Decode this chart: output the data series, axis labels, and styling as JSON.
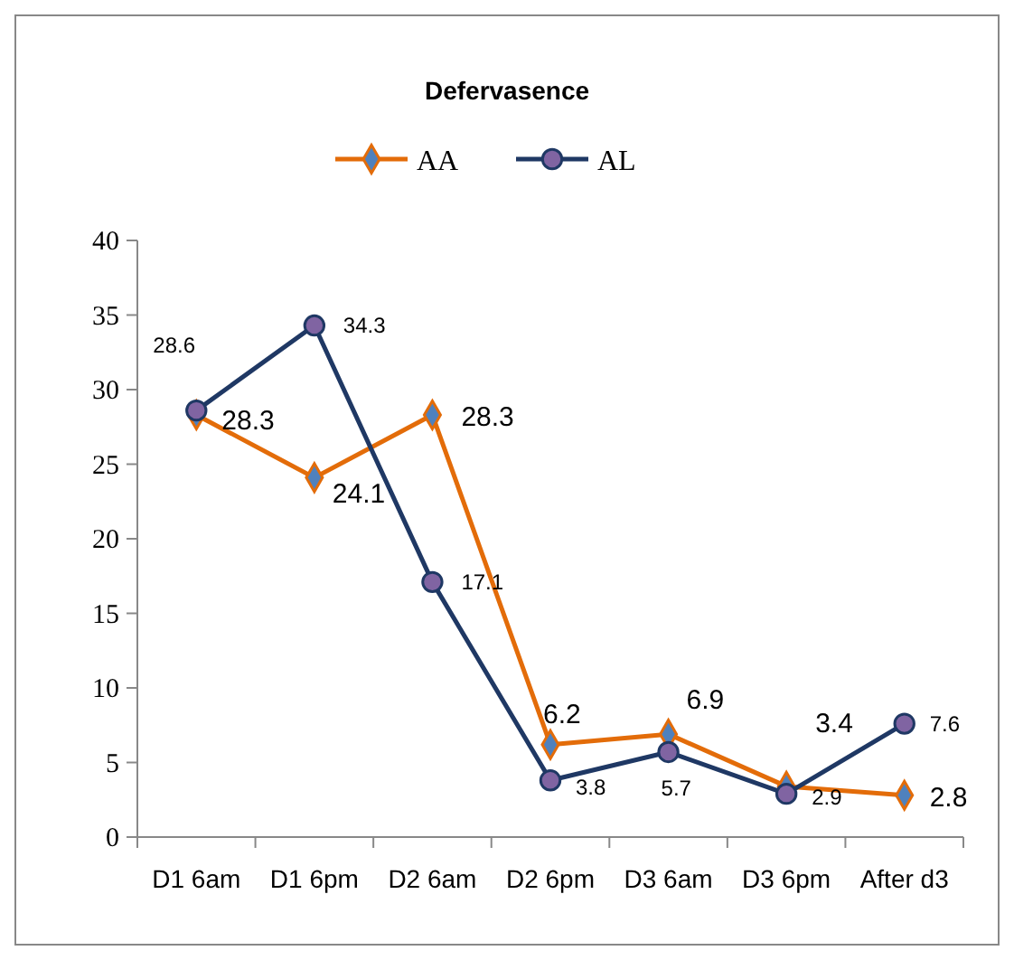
{
  "chart_data": {
    "type": "line",
    "title": "Defervasence",
    "categories": [
      "D1 6am",
      "D1 6pm",
      "D2 6am",
      "D2 6pm",
      "D3 6am",
      "D3 6pm",
      "After d3"
    ],
    "series": [
      {
        "name": "AA",
        "color": "#e36c09",
        "marker": "diamond",
        "values": [
          28.3,
          24.1,
          28.3,
          6.2,
          6.9,
          3.4,
          2.8
        ]
      },
      {
        "name": "AL",
        "color": "#1f3864",
        "marker": "circle",
        "values": [
          28.6,
          34.3,
          17.1,
          3.8,
          5.7,
          2.9,
          7.6
        ]
      }
    ],
    "ylim": [
      0,
      40
    ],
    "yticks": [
      0,
      5,
      10,
      15,
      20,
      25,
      30,
      35,
      40
    ],
    "grid": false,
    "legend": "top",
    "data_labels": true
  }
}
